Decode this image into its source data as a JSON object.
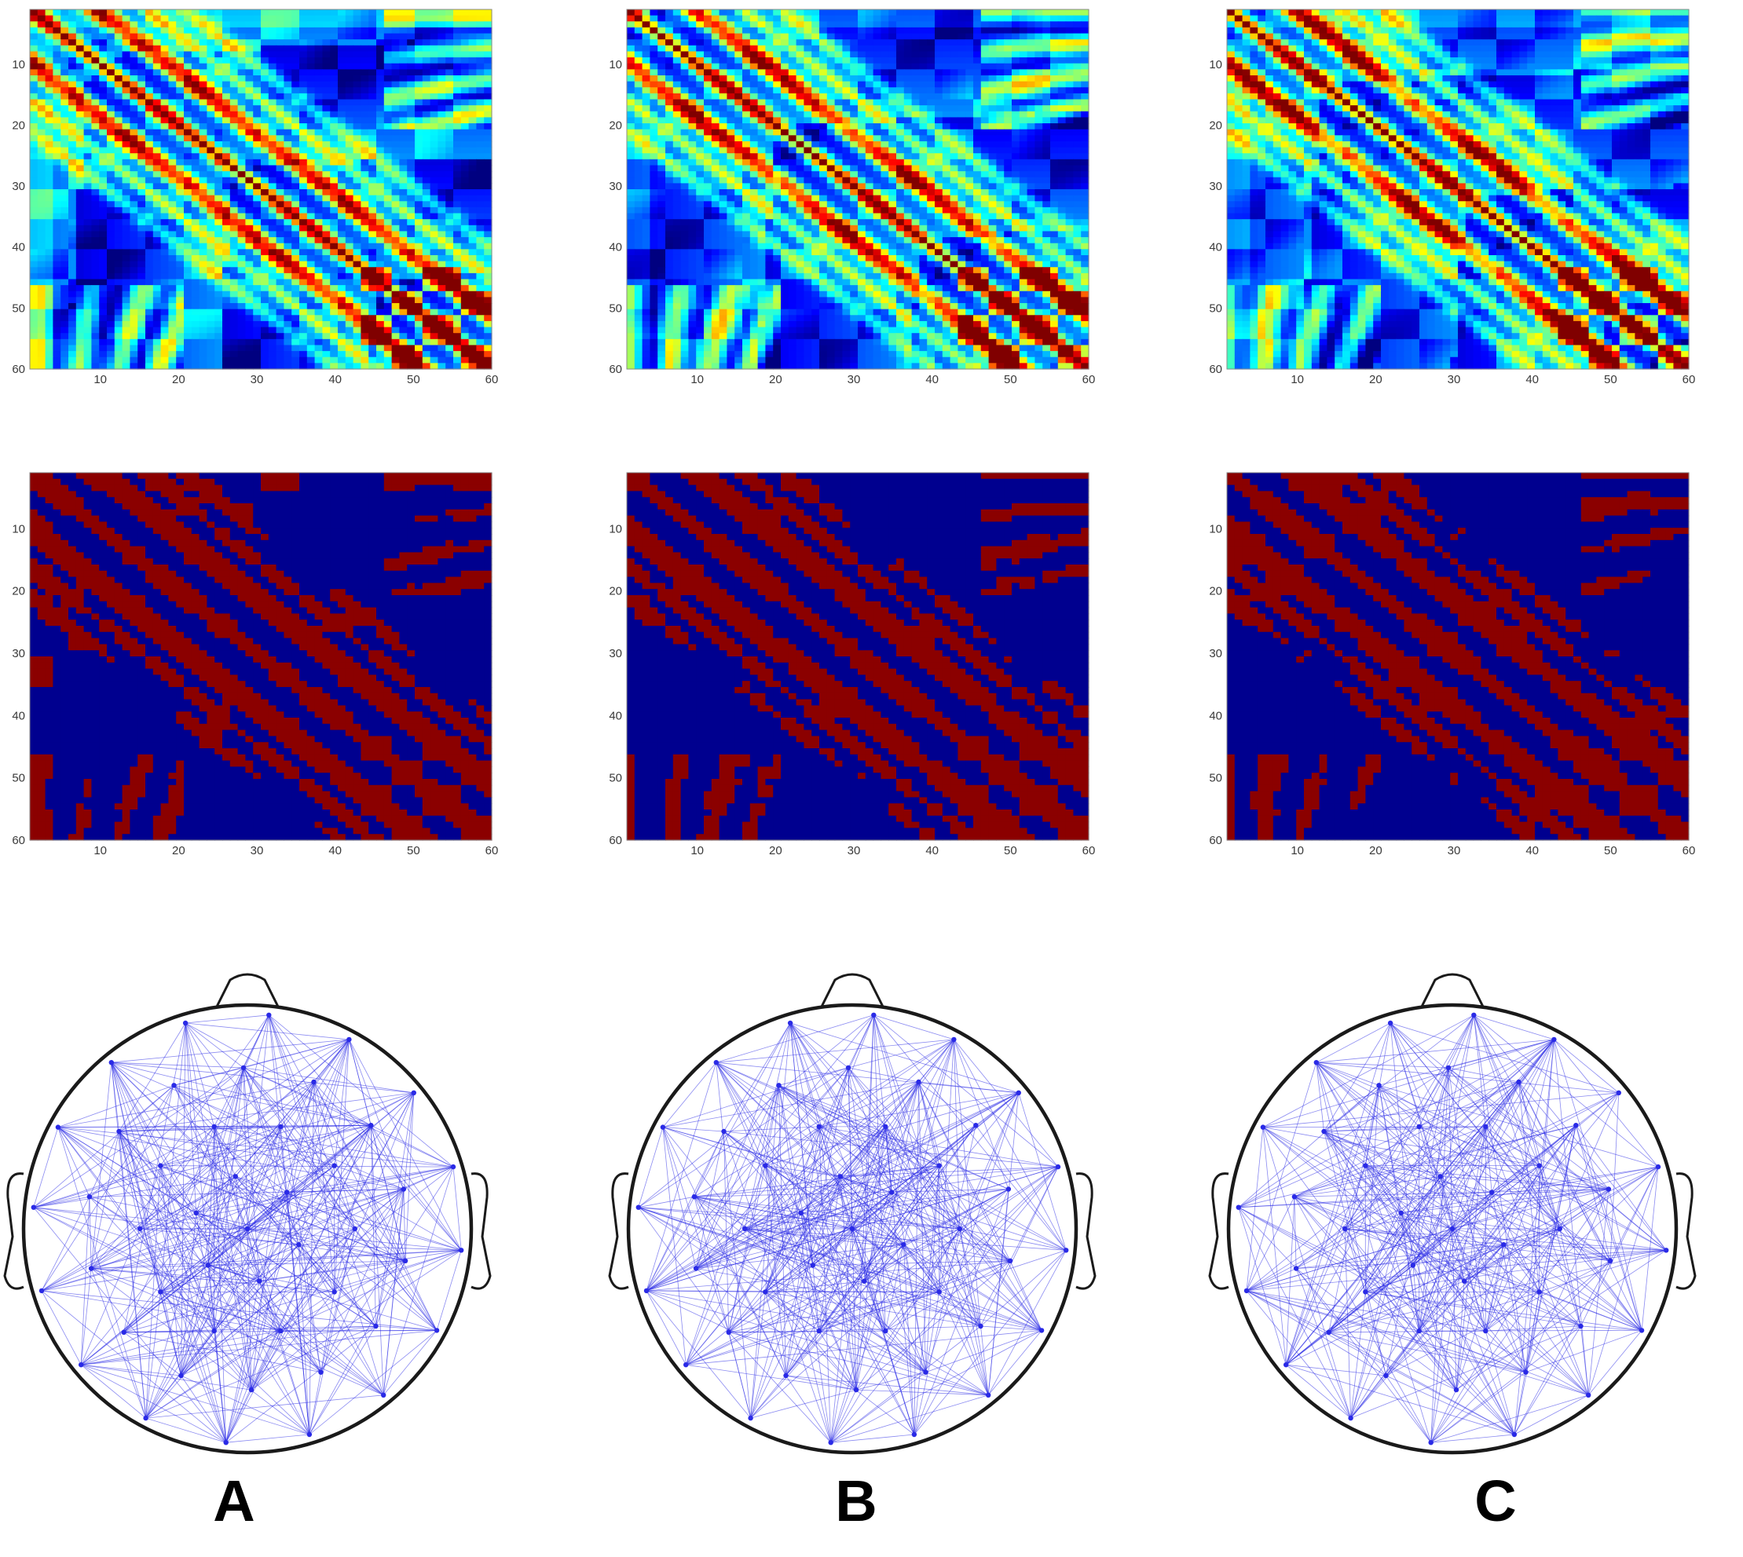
{
  "figure": {
    "column_labels": [
      "A",
      "B",
      "C"
    ]
  },
  "chart_data": [
    {
      "type": "heatmap",
      "panel": "A-correlation",
      "colormap": "jet",
      "n_channels": 60,
      "xlim": [
        1,
        60
      ],
      "ylim": [
        60,
        1
      ],
      "x_ticks": [
        10,
        20,
        30,
        40,
        50,
        60
      ],
      "y_ticks": [
        10,
        20,
        30,
        40,
        50,
        60
      ],
      "title": "",
      "xlabel": "",
      "ylabel": ""
    },
    {
      "type": "heatmap",
      "panel": "B-correlation",
      "colormap": "jet",
      "n_channels": 60,
      "xlim": [
        1,
        60
      ],
      "ylim": [
        60,
        1
      ],
      "x_ticks": [
        10,
        20,
        30,
        40,
        50,
        60
      ],
      "y_ticks": [
        10,
        20,
        30,
        40,
        50,
        60
      ],
      "title": "",
      "xlabel": "",
      "ylabel": ""
    },
    {
      "type": "heatmap",
      "panel": "C-correlation",
      "colormap": "jet",
      "n_channels": 60,
      "xlim": [
        1,
        60
      ],
      "ylim": [
        60,
        1
      ],
      "x_ticks": [
        10,
        20,
        30,
        40,
        50,
        60
      ],
      "y_ticks": [
        10,
        20,
        30,
        40,
        50,
        60
      ],
      "title": "",
      "xlabel": "",
      "ylabel": ""
    },
    {
      "type": "heatmap",
      "panel": "A-binary",
      "colormap": "binary",
      "colors": {
        "on": "#8b0000",
        "off": "#00008f"
      },
      "n_channels": 60,
      "xlim": [
        1,
        60
      ],
      "ylim": [
        60,
        1
      ],
      "x_ticks": [
        10,
        20,
        30,
        40,
        50,
        60
      ],
      "y_ticks": [
        10,
        20,
        30,
        40,
        50,
        60
      ],
      "title": "",
      "xlabel": "",
      "ylabel": ""
    },
    {
      "type": "heatmap",
      "panel": "B-binary",
      "colormap": "binary",
      "colors": {
        "on": "#8b0000",
        "off": "#00008f"
      },
      "n_channels": 60,
      "xlim": [
        1,
        60
      ],
      "ylim": [
        60,
        1
      ],
      "x_ticks": [
        10,
        20,
        30,
        40,
        50,
        60
      ],
      "y_ticks": [
        10,
        20,
        30,
        40,
        50,
        60
      ],
      "title": "",
      "xlabel": "",
      "ylabel": ""
    },
    {
      "type": "heatmap",
      "panel": "C-binary",
      "colormap": "binary",
      "colors": {
        "on": "#8b0000",
        "off": "#00008f"
      },
      "n_channels": 60,
      "xlim": [
        1,
        60
      ],
      "ylim": [
        60,
        1
      ],
      "x_ticks": [
        10,
        20,
        30,
        40,
        50,
        60
      ],
      "y_ticks": [
        10,
        20,
        30,
        40,
        50,
        60
      ],
      "title": "",
      "xlabel": "",
      "ylabel": ""
    },
    {
      "type": "network",
      "panel": "A-topography",
      "edge_color": "#2a2ae6",
      "head_outline_color": "#1a1a1a"
    },
    {
      "type": "network",
      "panel": "B-topography",
      "edge_color": "#2a2ae6",
      "head_outline_color": "#1a1a1a"
    },
    {
      "type": "network",
      "panel": "C-topography",
      "edge_color": "#2a2ae6",
      "head_outline_color": "#1a1a1a"
    }
  ]
}
